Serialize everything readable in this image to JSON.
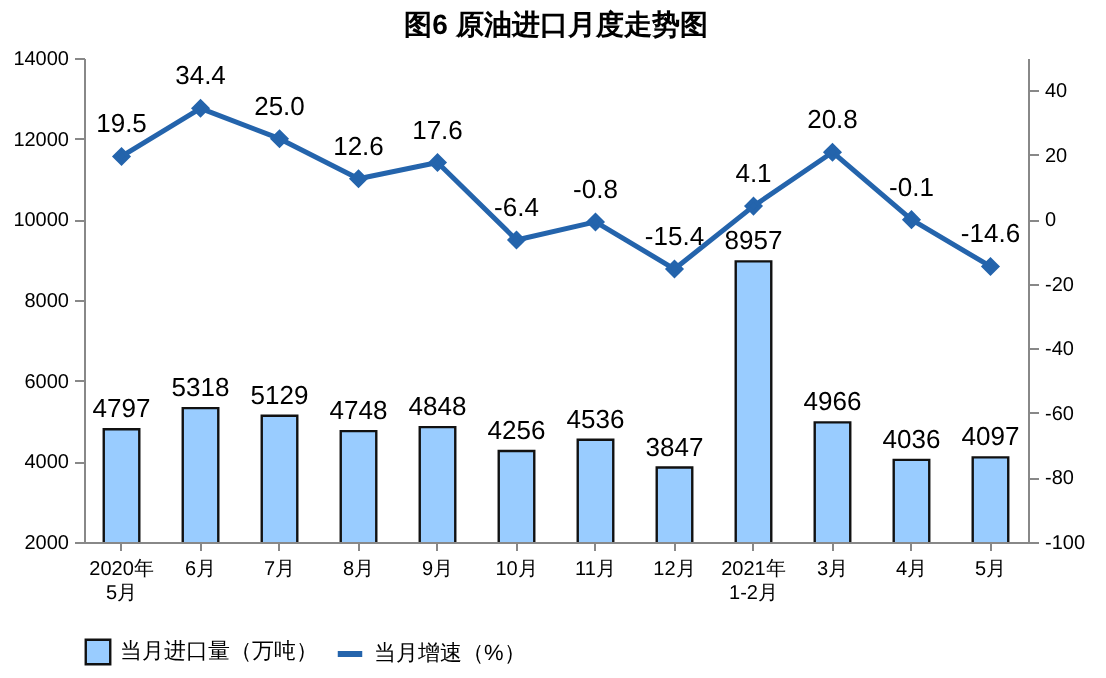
{
  "chart_data": {
    "type": "bar",
    "title": "图6 原油进口月度走势图",
    "categories": [
      "2020年\n5月",
      "6月",
      "7月",
      "8月",
      "9月",
      "10月",
      "11月",
      "12月",
      "2021年\n1-2月",
      "3月",
      "4月",
      "5月"
    ],
    "series": [
      {
        "name": "当月进口量（万吨）",
        "color": "#99ccff",
        "values": [
          4797,
          5318,
          5129,
          4748,
          4848,
          4256,
          4536,
          3847,
          8957,
          4966,
          4036,
          4097
        ]
      },
      {
        "name": "当月增速（%）",
        "type": "line",
        "axis": "y2",
        "color": "#2464ac",
        "marker": "diamond",
        "values": [
          19.5,
          34.4,
          25.0,
          12.6,
          17.6,
          -6.4,
          -0.8,
          -15.4,
          4.1,
          20.8,
          -0.1,
          -14.6
        ],
        "value_labels": [
          "19.5",
          "34.4",
          "25.0",
          "12.6",
          "17.6",
          "-6.4",
          "-0.8",
          "-15.4",
          "4.1",
          "20.8",
          "-0.1",
          "-14.6"
        ]
      }
    ],
    "ylim": [
      2000,
      14000
    ],
    "yticks": [
      2000,
      4000,
      6000,
      8000,
      10000,
      12000,
      14000
    ],
    "y2lim": [
      -100,
      50
    ],
    "y2ticks": [
      -100,
      -80,
      -60,
      -40,
      -20,
      0,
      20,
      40
    ],
    "data_labels": true,
    "legend": "bottom"
  }
}
